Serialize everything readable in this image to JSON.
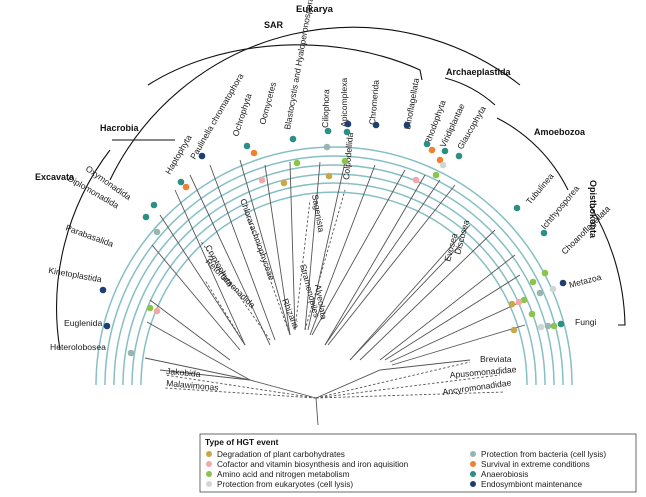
{
  "colors": {
    "degradation": "#c9a74b",
    "cofactor": "#f0a8a8",
    "amino": "#8cc34a",
    "euk_protection": "#cfd6d6",
    "bact_protection": "#98b5b0",
    "extreme": "#ee8233",
    "anaerobiosis": "#2d8f84",
    "endosymbiont": "#1e3f6f",
    "ring": "#86bfc4"
  },
  "supergroups": {
    "eukarya": "Eukarya",
    "sar": "SAR",
    "archaeplastida": "Archaeplastida",
    "hacrobia": "Hacrobia",
    "amoebozoa": "Amoebozoa",
    "excavata": "Excavata",
    "opisthokonta": "Opisthokonta"
  },
  "taxa": {
    "paulinella": "Paulinella chromatophora",
    "haptophyta": "Haptophyta",
    "ochrophyta": "Ochrophyta",
    "oomycetes": "Oomycetes",
    "blastocystis": "Blastocystis and Hyaloperonospora",
    "ciliophora": "Ciliophora",
    "apicomplexa": "Apicomplexa",
    "chromerida": "Chromerida",
    "dinoflagellata": "Dinoflagellata",
    "rhodophyta": "Rhodophyta",
    "viridiplantae": "Viridiplantae",
    "glaucophyta": "Glaucophyta",
    "oxymonadida": "Oxymonadida",
    "diplomonadida": "Diplomonadida",
    "parabasalida": "Parabasalida",
    "kinetoplastida": "Kinetoplastida",
    "euglenida": "Euglenida",
    "heterolobosea": "Heterolobosea",
    "tubulinea": "Tubulinea",
    "ichthyosporea": "Ichthyosporea",
    "choanoflagellata": "Choanoflagellata",
    "metazoa": "Metazoa",
    "fungi": "Fungi",
    "cryptophyta": "Cryptophyta",
    "chlorarachniophyceae": "Chlorarachniophyceae",
    "rhizaria": "Rhizaria",
    "stramenopiles": "Stramenopiles",
    "alveolata": "Alveolata",
    "colpodellida": "Colpodellida",
    "sagenista": "Sagenista",
    "retortamonadida": "Retortamonadida",
    "discosea": "Discosea",
    "evosea": "Evosea",
    "jakobida": "Jakobida",
    "malawimonas": "Malawimonas",
    "breviata": "Breviata",
    "apusomonadidae": "Apusomonadidae",
    "ancyromonadidae": "Ancyromonadidae"
  },
  "legend": {
    "title": "Type of HGT event",
    "items": [
      {
        "label": "Degradation of plant carbohydrates",
        "color": "#c9a74b"
      },
      {
        "label": "Cofactor and vitamin biosynthesis and iron aquisition",
        "color": "#f0a8a8"
      },
      {
        "label": "Amino acid and nitrogen metabolism",
        "color": "#8cc34a"
      },
      {
        "label": "Protection from eukaryotes (cell lysis)",
        "color": "#cfd6d6"
      },
      {
        "label": "Protection from bacteria (cell lysis)",
        "color": "#98b5b0"
      },
      {
        "label": "Survival in extreme conditions",
        "color": "#ee8233"
      },
      {
        "label": "Anaerobiosis",
        "color": "#2d8f84"
      },
      {
        "label": "Endosymbiont maintenance",
        "color": "#1e3f6f"
      }
    ]
  }
}
